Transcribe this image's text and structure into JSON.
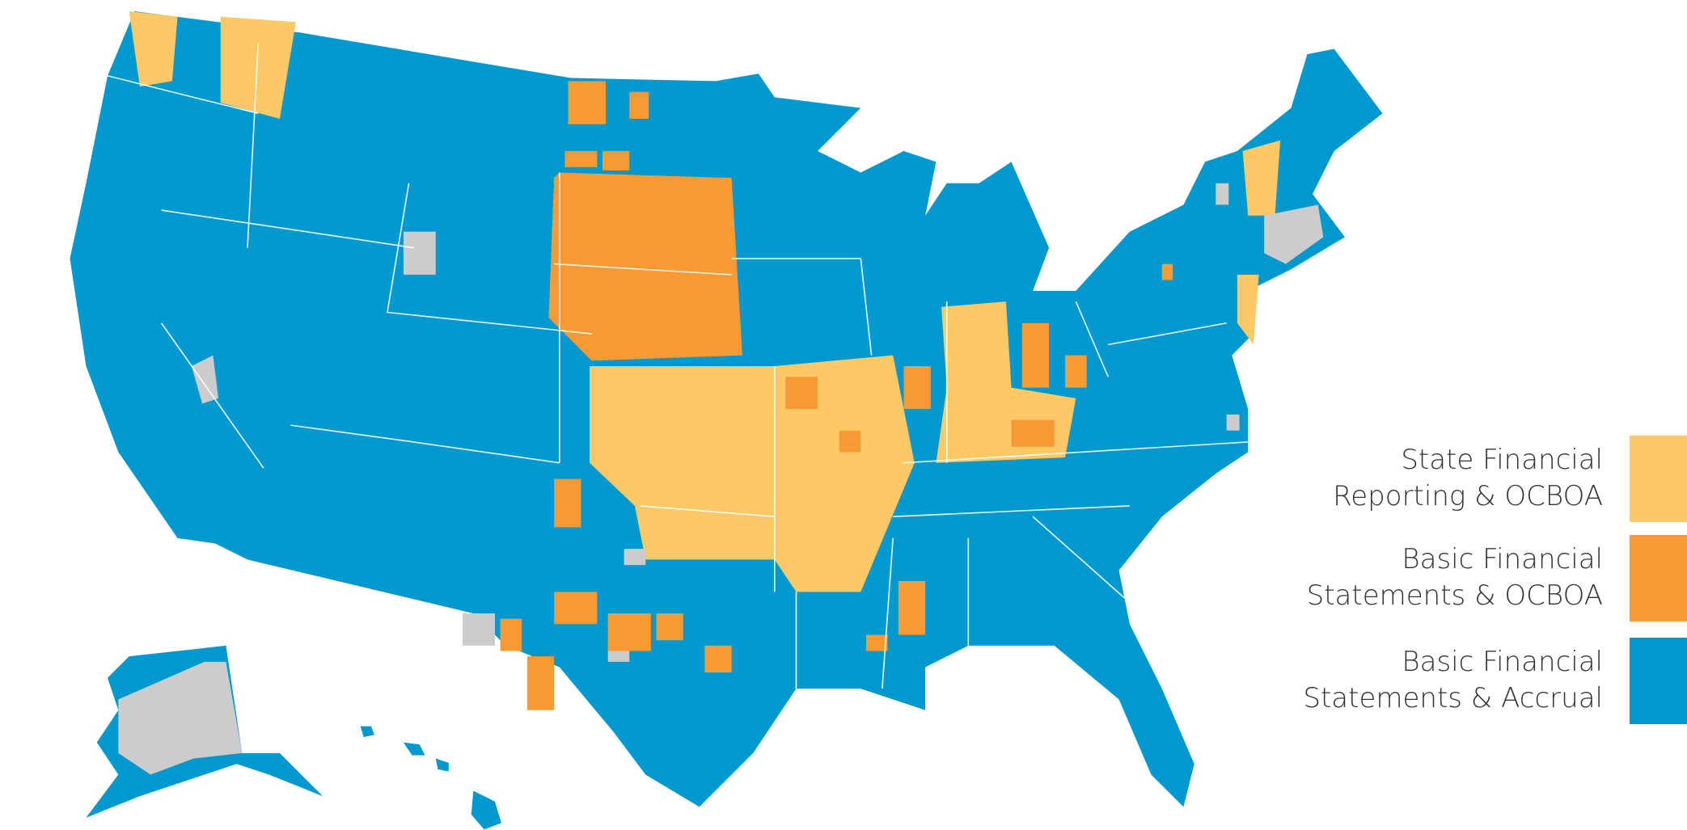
{
  "legend": {
    "items": [
      {
        "label": "State Financial Reporting & OCBOA",
        "color": "#fdc967"
      },
      {
        "label": "Basic Financial Statements & OCBOA",
        "color": "#f89a33"
      },
      {
        "label": "Basic Financial Statements & Accrual",
        "color": "#0099cf"
      }
    ]
  }
}
